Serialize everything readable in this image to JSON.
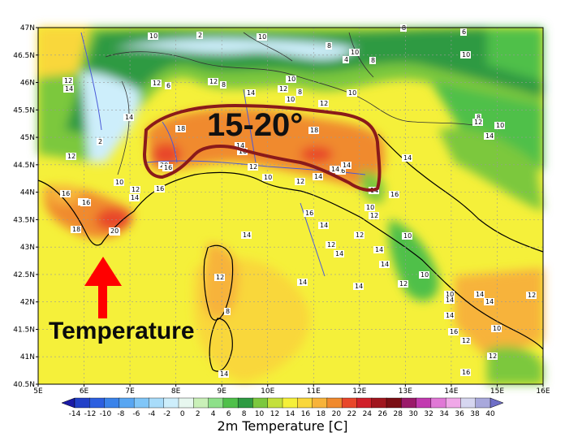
{
  "map": {
    "lat_labels": [
      "47N",
      "46.5N",
      "46N",
      "45.5N",
      "45N",
      "44.5N",
      "44N",
      "43.5N",
      "43N",
      "42.5N",
      "42N",
      "41.5N",
      "41N",
      "40.5N"
    ],
    "lon_labels": [
      "5E",
      "6E",
      "7E",
      "8E",
      "9E",
      "10E",
      "11E",
      "12E",
      "13E",
      "14E",
      "15E",
      "16E"
    ],
    "contour_labels": [
      "10",
      "2",
      "10",
      "8",
      "10",
      "4",
      "8",
      "8",
      "6",
      "10",
      "12",
      "14",
      "12",
      "8",
      "12",
      "6",
      "14",
      "12",
      "10",
      "8",
      "10",
      "10",
      "12",
      "8",
      "12",
      "10",
      "14",
      "14",
      "12",
      "2",
      "10",
      "12",
      "14",
      "16",
      "18",
      "18",
      "14",
      "20",
      "16",
      "12",
      "10",
      "12",
      "16",
      "14",
      "14",
      "16",
      "16",
      "18",
      "16",
      "16",
      "14",
      "16",
      "10",
      "12",
      "16",
      "14",
      "10",
      "14",
      "14",
      "12",
      "14",
      "14",
      "12",
      "8",
      "10",
      "10",
      "14",
      "14",
      "14",
      "12",
      "14",
      "16",
      "12",
      "10",
      "12",
      "16",
      "14",
      "14",
      "12",
      "14",
      "12",
      "14",
      "20",
      "16",
      "14"
    ],
    "colors": {
      "background_yellow": "#f5f03a",
      "warm_orange": "#f7b33a",
      "hot_orange": "#f08a2e",
      "red": "#e8472a",
      "green_light": "#b7e05a",
      "green": "#5cbf4f",
      "green_dark": "#2e9a42",
      "cyan": "#c8f2e6",
      "white": "#ffffff",
      "outline": "#8a1a1a",
      "arrow": "#ff0000"
    }
  },
  "annotations": {
    "range_label": "15-20°",
    "arrow_label": "Temperature"
  },
  "legend": {
    "ticks": [
      "-14",
      "-12",
      "-10",
      "-8",
      "-6",
      "-4",
      "-2",
      "0",
      "2",
      "4",
      "6",
      "8",
      "10",
      "12",
      "14",
      "16",
      "18",
      "20",
      "22",
      "24",
      "26",
      "28",
      "30",
      "32",
      "34",
      "36",
      "38",
      "40"
    ],
    "colors": [
      "#1a1aa6",
      "#2140c8",
      "#2c5fe0",
      "#3a83ea",
      "#58a6f2",
      "#80c6f8",
      "#a8dcfa",
      "#cdeefb",
      "#e7f7ef",
      "#c9f0b8",
      "#8ee08a",
      "#4fc04a",
      "#2e9a42",
      "#7cc83e",
      "#c4e03c",
      "#f5f03a",
      "#f9d73a",
      "#f7b33a",
      "#f08a2e",
      "#e8472a",
      "#d0202a",
      "#a0161e",
      "#7a0e14",
      "#9a1a6a",
      "#c23ab0",
      "#e078d6",
      "#f0a8e8",
      "#d6d6f0",
      "#a8a8dc",
      "#6e6ec6"
    ],
    "title": "2m Temperature [C]"
  }
}
